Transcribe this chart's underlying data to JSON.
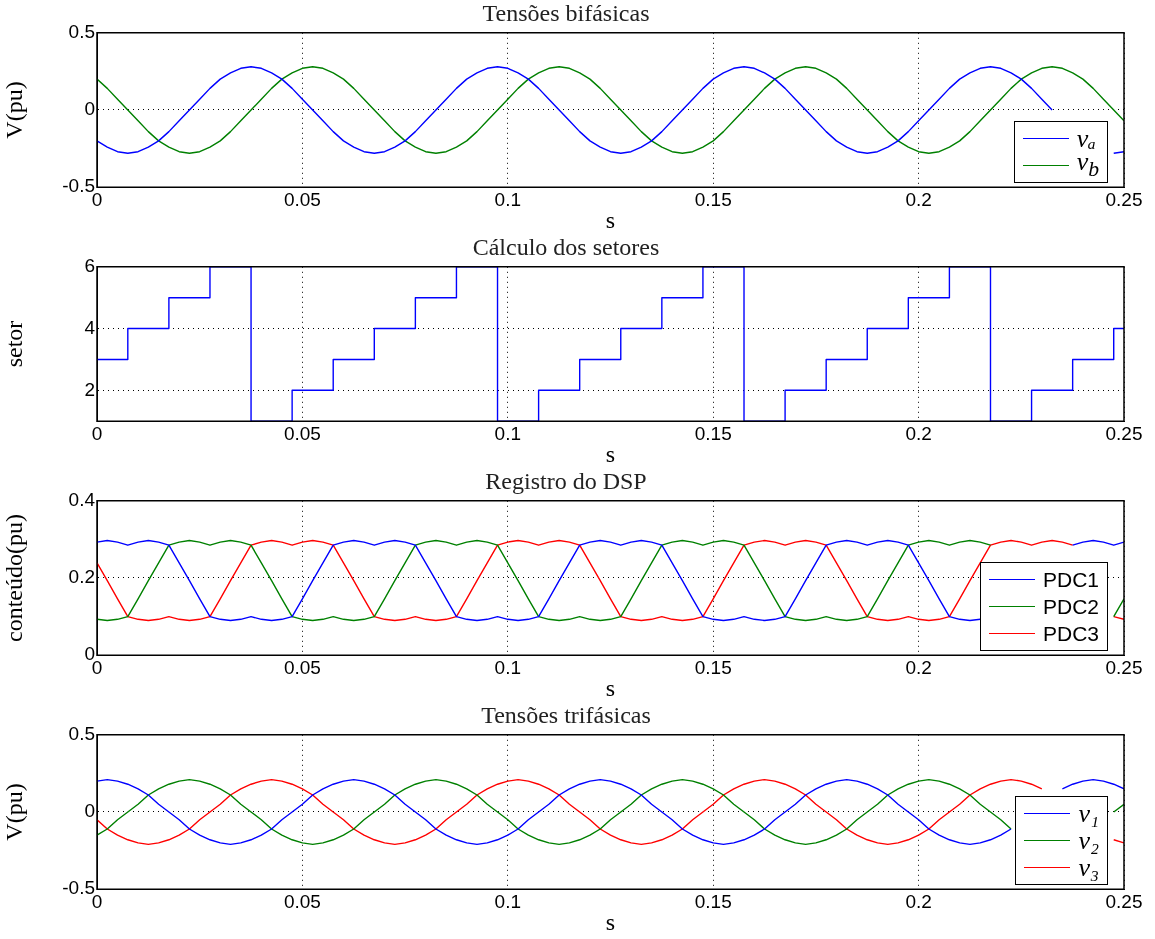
{
  "chart_data": [
    {
      "type": "line",
      "title": "Tensões bifásicas",
      "xlabel": "s",
      "ylabel": "V(pu)",
      "xlim": [
        0,
        0.25
      ],
      "xticks": [
        0,
        0.05,
        0.1,
        0.15,
        0.2,
        0.25
      ],
      "ylim": [
        -0.5,
        0.5
      ],
      "yticks": [
        -0.5,
        0,
        0.5
      ],
      "grid": true,
      "legend": "bottom right",
      "x": [
        0,
        0.0025,
        0.005,
        0.0075,
        0.01,
        0.0125,
        0.015,
        0.0175,
        0.02,
        0.0225,
        0.025,
        0.0275,
        0.03,
        0.0325,
        0.035,
        0.0375,
        0.04,
        0.0425,
        0.045,
        0.0475,
        0.05,
        0.0525,
        0.055,
        0.0575,
        0.06,
        0.0625,
        0.065,
        0.0675,
        0.07,
        0.0725,
        0.075,
        0.0775,
        0.08,
        0.0825,
        0.085,
        0.0875,
        0.09,
        0.0925,
        0.095,
        0.0975,
        0.1,
        0.1025,
        0.105,
        0.1075,
        0.11,
        0.1125,
        0.115,
        0.1175,
        0.12,
        0.1225,
        0.125,
        0.1275,
        0.13,
        0.1325,
        0.135,
        0.1375,
        0.14,
        0.1425,
        0.145,
        0.1475,
        0.15,
        0.1525,
        0.155,
        0.1575,
        0.16,
        0.1625,
        0.165,
        0.1675,
        0.17,
        0.1725,
        0.175,
        0.1775,
        0.18,
        0.1825,
        0.185,
        0.1875,
        0.19,
        0.1925,
        0.195,
        0.1975,
        0.2,
        0.2025,
        0.205,
        0.2075,
        0.21,
        0.2125,
        0.215,
        0.2175,
        0.22,
        0.2225,
        0.225,
        0.2275,
        0.23,
        0.2325,
        0.235,
        0.2375,
        0.24,
        0.2425,
        0.245,
        0.2475,
        0.25
      ],
      "series": [
        {
          "name": "vₐ",
          "color": "#0000ff",
          "values": [
            -0.2,
            -0.24,
            -0.27,
            -0.28,
            -0.27,
            -0.24,
            -0.2,
            -0.14,
            -0.07,
            0,
            0.07,
            0.14,
            0.2,
            0.24,
            0.27,
            0.28,
            0.27,
            0.24,
            0.2,
            0.14,
            0.07,
            0,
            -0.07,
            -0.14,
            -0.2,
            -0.24,
            -0.27,
            -0.28,
            -0.27,
            -0.24,
            -0.2,
            -0.14,
            -0.07,
            0,
            0.07,
            0.14,
            0.2,
            0.24,
            0.27,
            0.28,
            0.27,
            0.24,
            0.2,
            0.14,
            0.07,
            0,
            -0.07,
            -0.14,
            -0.2,
            -0.24,
            -0.27,
            -0.28,
            -0.27,
            -0.24,
            -0.2,
            -0.14,
            -0.07,
            0,
            0.07,
            0.14,
            0.2,
            0.24,
            0.27,
            0.28,
            0.27,
            0.24,
            0.2,
            0.14,
            0.07,
            0,
            -0.07,
            -0.14,
            -0.2,
            -0.24,
            -0.27,
            -0.28,
            -0.27,
            -0.24,
            -0.2,
            -0.14,
            -0.07,
            0,
            0.07,
            0.14,
            0.2,
            0.24,
            0.27,
            0.28,
            0.27,
            0.24,
            0.2,
            0.14,
            0.07,
            0,
            null,
            null,
            null,
            null,
            null,
            -0.28,
            -0.27
          ]
        },
        {
          "name": "v$_{b}$",
          "color": "#008000",
          "values": [
            0.2,
            0.14,
            0.07,
            0,
            -0.07,
            -0.14,
            -0.2,
            -0.24,
            -0.27,
            -0.28,
            -0.27,
            -0.24,
            -0.2,
            -0.14,
            -0.07,
            0,
            0.07,
            0.14,
            0.2,
            0.24,
            0.27,
            0.28,
            0.27,
            0.24,
            0.2,
            0.14,
            0.07,
            0,
            -0.07,
            -0.14,
            -0.2,
            -0.24,
            -0.27,
            -0.28,
            -0.27,
            -0.24,
            -0.2,
            -0.14,
            -0.07,
            0,
            0.07,
            0.14,
            0.2,
            0.24,
            0.27,
            0.28,
            0.27,
            0.24,
            0.2,
            0.14,
            0.07,
            0,
            -0.07,
            -0.14,
            -0.2,
            -0.24,
            -0.27,
            -0.28,
            -0.27,
            -0.24,
            -0.2,
            -0.14,
            -0.07,
            0,
            0.07,
            0.14,
            0.2,
            0.24,
            0.27,
            0.28,
            0.27,
            0.24,
            0.2,
            0.14,
            0.07,
            0,
            -0.07,
            -0.14,
            -0.2,
            -0.24,
            -0.27,
            -0.28,
            -0.27,
            -0.24,
            -0.2,
            -0.14,
            -0.07,
            0,
            0.07,
            0.14,
            0.2,
            0.24,
            0.27,
            0.28,
            0.27,
            0.24,
            0.2,
            0.14,
            0.07,
            0,
            -0.07
          ]
        }
      ]
    },
    {
      "type": "step",
      "title": "Cálculo dos setores",
      "xlabel": "s",
      "ylabel": "setor",
      "xlim": [
        0,
        0.25
      ],
      "xticks": [
        0,
        0.05,
        0.1,
        0.15,
        0.2,
        0.25
      ],
      "ylim": [
        1,
        6
      ],
      "yticks": [
        2,
        4,
        6
      ],
      "grid": true,
      "series": [
        {
          "color": "#0000ff",
          "x": [
            0,
            0.0075,
            0.0175,
            0.0275,
            0.0375,
            0.0475,
            0.0575,
            0.0675,
            0.0775,
            0.0875,
            0.0975,
            0.1075,
            0.1175,
            0.1275,
            0.1375,
            0.1475,
            0.1575,
            0.1675,
            0.1775,
            0.1875,
            0.1975,
            0.2075,
            0.2175,
            0.2275,
            0.2375,
            0.2475,
            0.25
          ],
          "values": [
            3,
            4,
            5,
            6,
            1,
            2,
            3,
            4,
            5,
            6,
            1,
            2,
            3,
            4,
            5,
            6,
            1,
            2,
            3,
            4,
            5,
            6,
            1,
            2,
            3,
            4,
            4
          ]
        }
      ]
    },
    {
      "type": "line",
      "title": "Registro do DSP",
      "xlabel": "s",
      "ylabel": "conteúdo(pu)",
      "xlim": [
        0,
        0.25
      ],
      "xticks": [
        0,
        0.05,
        0.1,
        0.15,
        0.2,
        0.25
      ],
      "ylim": [
        0,
        0.4
      ],
      "yticks": [
        0,
        0.2,
        0.4
      ],
      "grid": true,
      "legend": "bottom right",
      "x": [
        0,
        0.0025,
        0.005,
        0.0075,
        0.01,
        0.0125,
        0.015,
        0.0175,
        0.02,
        0.0225,
        0.025,
        0.0275,
        0.03,
        0.0325,
        0.035,
        0.0375,
        0.04,
        0.0425,
        0.045,
        0.0475,
        0.05,
        0.0525,
        0.055,
        0.0575,
        0.06,
        0.0625,
        0.065,
        0.0675,
        0.07,
        0.0725,
        0.075,
        0.0775,
        0.08,
        0.0825,
        0.085,
        0.0875,
        0.09,
        0.0925,
        0.095,
        0.0975,
        0.1,
        0.1025,
        0.105,
        0.1075,
        0.11,
        0.1125,
        0.115,
        0.1175,
        0.12,
        0.1225,
        0.125,
        0.1275,
        0.13,
        0.1325,
        0.135,
        0.1375,
        0.14,
        0.1425,
        0.145,
        0.1475,
        0.15,
        0.1525,
        0.155,
        0.1575,
        0.16,
        0.1625,
        0.165,
        0.1675,
        0.17,
        0.1725,
        0.175,
        0.1775,
        0.18,
        0.1825,
        0.185,
        0.1875,
        0.19,
        0.1925,
        0.195,
        0.1975,
        0.2,
        0.2025,
        0.205,
        0.2075,
        0.21,
        0.2125,
        0.215,
        0.2175,
        0.22,
        0.2225,
        0.225,
        0.2275,
        0.23,
        0.2325,
        0.235,
        0.2375,
        0.24,
        0.2425,
        0.245,
        0.2475,
        0.25
      ],
      "series": [
        {
          "name": "PDC1",
          "color": "#0000ff",
          "values": [
            0.293,
            0.297,
            0.293,
            0.285,
            0.293,
            0.297,
            0.293,
            0.285,
            0.239,
            0.193,
            0.146,
            0.1,
            0.093,
            0.09,
            0.093,
            0.1,
            0.093,
            0.09,
            0.093,
            0.1,
            0.146,
            0.193,
            0.239,
            0.285,
            0.293,
            0.297,
            0.293,
            0.285,
            0.293,
            0.297,
            0.293,
            0.285,
            0.239,
            0.193,
            0.146,
            0.1,
            0.093,
            0.09,
            0.093,
            0.1,
            0.093,
            0.09,
            0.093,
            0.1,
            0.146,
            0.193,
            0.239,
            0.285,
            0.293,
            0.297,
            0.293,
            0.285,
            0.293,
            0.297,
            0.293,
            0.285,
            0.239,
            0.193,
            0.146,
            0.1,
            0.093,
            0.09,
            0.093,
            0.1,
            0.093,
            0.09,
            0.093,
            0.1,
            0.146,
            0.193,
            0.239,
            0.285,
            0.293,
            0.297,
            0.293,
            0.285,
            0.293,
            0.297,
            0.293,
            0.285,
            0.239,
            0.193,
            0.146,
            0.1,
            0.093,
            0.09,
            0.093,
            null,
            null,
            null,
            null,
            null,
            null,
            null,
            null,
            0.285,
            0.293,
            0.297,
            0.293,
            0.285,
            0.293
          ]
        },
        {
          "name": "PDC2",
          "color": "#008000",
          "values": [
            0.093,
            0.09,
            0.093,
            0.1,
            0.146,
            0.193,
            0.239,
            0.285,
            0.293,
            0.297,
            0.293,
            0.285,
            0.293,
            0.297,
            0.293,
            0.285,
            0.239,
            0.193,
            0.146,
            0.1,
            0.093,
            0.09,
            0.093,
            0.1,
            0.093,
            0.09,
            0.093,
            0.1,
            0.146,
            0.193,
            0.239,
            0.285,
            0.293,
            0.297,
            0.293,
            0.285,
            0.293,
            0.297,
            0.293,
            0.285,
            0.239,
            0.193,
            0.146,
            0.1,
            0.093,
            0.09,
            0.093,
            0.1,
            0.093,
            0.09,
            0.093,
            0.1,
            0.146,
            0.193,
            0.239,
            0.285,
            0.293,
            0.297,
            0.293,
            0.285,
            0.293,
            0.297,
            0.293,
            0.285,
            0.239,
            0.193,
            0.146,
            0.1,
            0.093,
            0.09,
            0.093,
            0.1,
            0.093,
            0.09,
            0.093,
            0.1,
            0.146,
            0.193,
            0.239,
            0.285,
            0.293,
            0.297,
            0.293,
            0.285,
            0.293,
            0.297,
            0.293,
            0.285,
            null,
            null,
            null,
            null,
            null,
            null,
            null,
            null,
            null,
            null,
            null,
            0.1,
            0.146
          ]
        },
        {
          "name": "PDC3",
          "color": "#ff0000",
          "values": [
            0.239,
            0.193,
            0.146,
            0.1,
            0.093,
            0.09,
            0.093,
            0.1,
            0.093,
            0.09,
            0.093,
            0.1,
            0.146,
            0.193,
            0.239,
            0.285,
            0.293,
            0.297,
            0.293,
            0.285,
            0.293,
            0.297,
            0.293,
            0.285,
            0.239,
            0.193,
            0.146,
            0.1,
            0.093,
            0.09,
            0.093,
            0.1,
            0.093,
            0.09,
            0.093,
            0.1,
            0.146,
            0.193,
            0.239,
            0.285,
            0.293,
            0.297,
            0.293,
            0.285,
            0.293,
            0.297,
            0.293,
            0.285,
            0.239,
            0.193,
            0.146,
            0.1,
            0.093,
            0.09,
            0.093,
            0.1,
            0.093,
            0.09,
            0.093,
            0.1,
            0.146,
            0.193,
            0.239,
            0.285,
            0.293,
            0.297,
            0.293,
            0.285,
            0.293,
            0.297,
            0.293,
            0.285,
            0.239,
            0.193,
            0.146,
            0.1,
            0.093,
            0.09,
            0.093,
            0.1,
            0.093,
            0.09,
            0.093,
            0.1,
            0.146,
            0.193,
            0.239,
            0.285,
            0.293,
            0.297,
            0.293,
            0.285,
            0.293,
            0.297,
            0.293,
            0.285,
            null,
            null,
            null,
            0.1,
            0.093
          ]
        }
      ]
    },
    {
      "type": "line",
      "title": "Tensões trifásicas",
      "xlabel": "s",
      "ylabel": "V(pu)",
      "xlim": [
        0,
        0.25
      ],
      "xticks": [
        0,
        0.05,
        0.1,
        0.15,
        0.2,
        0.25
      ],
      "ylim": [
        -0.5,
        0.5
      ],
      "yticks": [
        -0.5,
        0,
        0.5
      ],
      "grid": true,
      "legend": "bottom right",
      "x": [
        0,
        0.0025,
        0.005,
        0.0075,
        0.01,
        0.0125,
        0.015,
        0.0175,
        0.02,
        0.0225,
        0.025,
        0.0275,
        0.03,
        0.0325,
        0.035,
        0.0375,
        0.04,
        0.0425,
        0.045,
        0.0475,
        0.05,
        0.0525,
        0.055,
        0.0575,
        0.06,
        0.0625,
        0.065,
        0.0675,
        0.07,
        0.0725,
        0.075,
        0.0775,
        0.08,
        0.0825,
        0.085,
        0.0875,
        0.09,
        0.0925,
        0.095,
        0.0975,
        0.1,
        0.1025,
        0.105,
        0.1075,
        0.11,
        0.1125,
        0.115,
        0.1175,
        0.12,
        0.1225,
        0.125,
        0.1275,
        0.13,
        0.1325,
        0.135,
        0.1375,
        0.14,
        0.1425,
        0.145,
        0.1475,
        0.15,
        0.1525,
        0.155,
        0.1575,
        0.16,
        0.1625,
        0.165,
        0.1675,
        0.17,
        0.1725,
        0.175,
        0.1775,
        0.18,
        0.1825,
        0.185,
        0.1875,
        0.19,
        0.1925,
        0.195,
        0.1975,
        0.2,
        0.2025,
        0.205,
        0.2075,
        0.21,
        0.2125,
        0.215,
        0.2175,
        0.22,
        0.2225,
        0.225,
        0.2275,
        0.23,
        0.2325,
        0.235,
        0.2375,
        0.24,
        0.2425,
        0.245,
        0.2475,
        0.25
      ],
      "series": [
        {
          "name": "v₁",
          "color": "#0000ff",
          "values": [
            0.2,
            0.21,
            0.2,
            0.18,
            0.15,
            0.11,
            0.05,
            0,
            -0.05,
            -0.11,
            -0.15,
            -0.18,
            -0.2,
            -0.21,
            -0.2,
            -0.18,
            -0.15,
            -0.11,
            -0.05,
            0,
            0.05,
            0.11,
            0.15,
            0.18,
            0.2,
            0.21,
            0.2,
            0.18,
            0.15,
            0.11,
            0.05,
            0,
            -0.05,
            -0.11,
            -0.15,
            -0.18,
            -0.2,
            -0.21,
            -0.2,
            -0.18,
            -0.15,
            -0.11,
            -0.05,
            0,
            0.05,
            0.11,
            0.15,
            0.18,
            0.2,
            0.21,
            0.2,
            0.18,
            0.15,
            0.11,
            0.05,
            0,
            -0.05,
            -0.11,
            -0.15,
            -0.18,
            -0.2,
            -0.21,
            -0.2,
            -0.18,
            -0.15,
            -0.11,
            -0.05,
            0,
            0.05,
            0.11,
            0.15,
            0.18,
            0.2,
            0.21,
            0.2,
            0.18,
            0.15,
            0.11,
            0.05,
            0,
            -0.05,
            -0.11,
            -0.15,
            -0.18,
            -0.2,
            -0.21,
            -0.2,
            -0.18,
            -0.15,
            -0.11,
            null,
            null,
            null,
            null,
            0.15,
            0.18,
            0.2,
            0.21,
            0.2,
            0.18,
            0.15
          ]
        },
        {
          "name": "v₂",
          "color": "#008000",
          "values": [
            -0.15,
            -0.11,
            -0.05,
            0,
            0.05,
            0.11,
            0.15,
            0.18,
            0.2,
            0.21,
            0.2,
            0.18,
            0.15,
            0.11,
            0.05,
            0,
            -0.05,
            -0.11,
            -0.15,
            -0.18,
            -0.2,
            -0.21,
            -0.2,
            -0.18,
            -0.15,
            -0.11,
            -0.05,
            0,
            0.05,
            0.11,
            0.15,
            0.18,
            0.2,
            0.21,
            0.2,
            0.18,
            0.15,
            0.11,
            0.05,
            0,
            -0.05,
            -0.11,
            -0.15,
            -0.18,
            -0.2,
            -0.21,
            -0.2,
            -0.18,
            -0.15,
            -0.11,
            -0.05,
            0,
            0.05,
            0.11,
            0.15,
            0.18,
            0.2,
            0.21,
            0.2,
            0.18,
            0.15,
            0.11,
            0.05,
            0,
            -0.05,
            -0.11,
            -0.15,
            -0.18,
            -0.2,
            -0.21,
            -0.2,
            -0.18,
            -0.15,
            -0.11,
            -0.05,
            0,
            0.05,
            0.11,
            0.15,
            0.18,
            0.2,
            0.21,
            0.2,
            0.18,
            0.15,
            0.11,
            0.05,
            0,
            -0.05,
            -0.11,
            null,
            null,
            null,
            null,
            null,
            null,
            null,
            null,
            null,
            0,
            0.05
          ]
        },
        {
          "name": "v₃",
          "color": "#ff0000",
          "values": [
            -0.05,
            -0.11,
            -0.15,
            -0.18,
            -0.2,
            -0.21,
            -0.2,
            -0.18,
            -0.15,
            -0.11,
            -0.05,
            0,
            0.05,
            0.11,
            0.15,
            0.18,
            0.2,
            0.21,
            0.2,
            0.18,
            0.15,
            0.11,
            0.05,
            0,
            -0.05,
            -0.11,
            -0.15,
            -0.18,
            -0.2,
            -0.21,
            -0.2,
            -0.18,
            -0.15,
            -0.11,
            -0.05,
            0,
            0.05,
            0.11,
            0.15,
            0.18,
            0.2,
            0.21,
            0.2,
            0.18,
            0.15,
            0.11,
            0.05,
            0,
            -0.05,
            -0.11,
            -0.15,
            -0.18,
            -0.2,
            -0.21,
            -0.2,
            -0.18,
            -0.15,
            -0.11,
            -0.05,
            0,
            0.05,
            0.11,
            0.15,
            0.18,
            0.2,
            0.21,
            0.2,
            0.18,
            0.15,
            0.11,
            0.05,
            0,
            -0.05,
            -0.11,
            -0.15,
            -0.18,
            -0.2,
            -0.21,
            -0.2,
            -0.18,
            -0.15,
            -0.11,
            -0.05,
            0,
            0.05,
            0.11,
            0.15,
            0.18,
            0.2,
            0.21,
            0.2,
            0.18,
            0.15,
            null,
            null,
            null,
            null,
            null,
            null,
            -0.18,
            -0.2
          ]
        }
      ]
    }
  ]
}
